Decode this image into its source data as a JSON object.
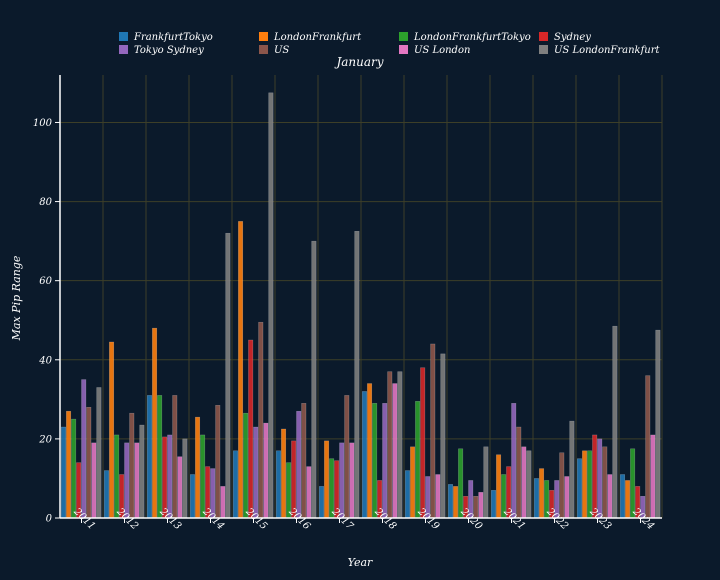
{
  "chart_data": {
    "type": "bar",
    "title": "January",
    "xlabel": "Year",
    "ylabel": "Max Pip Range",
    "ylim": [
      0,
      112
    ],
    "yticks": [
      0,
      20,
      40,
      60,
      80,
      100
    ],
    "grid": true,
    "legend_position": "top",
    "categories": [
      "2011",
      "2012",
      "2013",
      "2014",
      "2015",
      "2016",
      "2017",
      "2018",
      "2019",
      "2020",
      "2021",
      "2022",
      "2023",
      "2024"
    ],
    "series": [
      {
        "name": "FrankfurtTokyo",
        "color": "#1f77b4",
        "values": [
          23,
          12,
          31,
          11,
          17,
          17,
          8,
          32,
          12,
          8.5,
          7,
          10,
          15,
          11
        ]
      },
      {
        "name": "LondonFrankfurt",
        "color": "#ff7f0e",
        "values": [
          27,
          44.5,
          48,
          25.5,
          75,
          22.5,
          19.5,
          34,
          18,
          8,
          16,
          12.5,
          17,
          9.5
        ]
      },
      {
        "name": "LondonFrankfurtTokyo",
        "color": "#2ca02c",
        "values": [
          25,
          21,
          31,
          21,
          26.5,
          14,
          15,
          29,
          29.5,
          17.5,
          11,
          9.5,
          17,
          17.5
        ]
      },
      {
        "name": "Sydney",
        "color": "#d62728",
        "values": [
          14,
          11,
          20.5,
          13,
          45,
          19.5,
          14.5,
          9.5,
          38,
          5.5,
          13,
          7,
          21,
          8
        ]
      },
      {
        "name": "Tokyo Sydney",
        "color": "#9467bd",
        "values": [
          35,
          19,
          21,
          12.5,
          23,
          27,
          19,
          29,
          10.5,
          9.5,
          29,
          9.5,
          20,
          5.5
        ]
      },
      {
        "name": "US",
        "color": "#8c564b",
        "values": [
          28,
          26.5,
          31,
          28.5,
          49.5,
          29,
          31,
          37,
          44,
          5.5,
          23,
          16.5,
          18,
          36
        ]
      },
      {
        "name": "US London",
        "color": "#e377c2",
        "values": [
          19,
          19,
          15.5,
          8,
          24,
          13,
          19,
          34,
          11,
          6.5,
          18,
          10.5,
          11,
          21
        ]
      },
      {
        "name": "US LondonFrankfurt",
        "color": "#7f7f7f",
        "values": [
          33,
          23.5,
          20,
          72,
          107.5,
          70,
          72.5,
          37,
          41.5,
          18,
          17,
          24.5,
          48.5,
          47.5
        ]
      }
    ]
  }
}
